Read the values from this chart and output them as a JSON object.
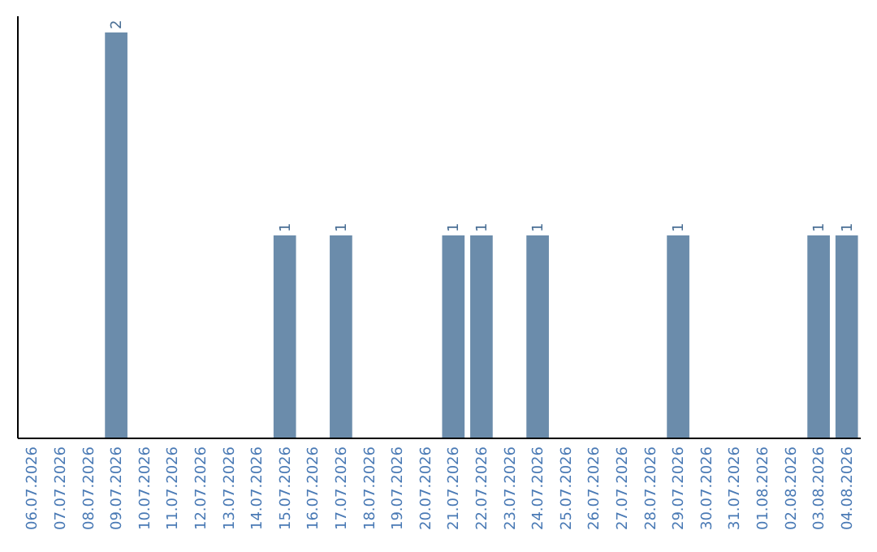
{
  "chart_data": {
    "type": "bar",
    "categories": [
      "06.07.2026",
      "07.07.2026",
      "08.07.2026",
      "09.07.2026",
      "10.07.2026",
      "11.07.2026",
      "12.07.2026",
      "13.07.2026",
      "14.07.2026",
      "15.07.2026",
      "16.07.2026",
      "17.07.2026",
      "18.07.2026",
      "19.07.2026",
      "20.07.2026",
      "21.07.2026",
      "22.07.2026",
      "23.07.2026",
      "24.07.2026",
      "25.07.2026",
      "26.07.2026",
      "27.07.2026",
      "28.07.2026",
      "29.07.2026",
      "30.07.2026",
      "31.07.2026",
      "01.08.2026",
      "02.08.2026",
      "03.08.2026",
      "04.08.2026"
    ],
    "values": [
      0,
      0,
      0,
      2,
      0,
      0,
      0,
      0,
      0,
      1,
      0,
      1,
      0,
      0,
      0,
      1,
      1,
      0,
      1,
      0,
      0,
      0,
      0,
      1,
      0,
      0,
      0,
      0,
      1,
      1
    ],
    "value_labels": [
      null,
      null,
      null,
      "2",
      null,
      null,
      null,
      null,
      null,
      "1",
      null,
      "1",
      null,
      null,
      null,
      "1",
      "1",
      null,
      "1",
      null,
      null,
      null,
      null,
      "1",
      null,
      null,
      null,
      null,
      "1",
      "1"
    ],
    "color": "#6b8cab",
    "tick_labels": "x"
  }
}
